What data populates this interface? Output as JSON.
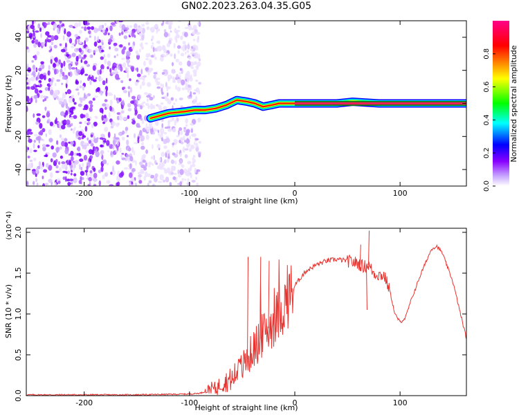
{
  "title": "GN02.2023.263.04.35.G05",
  "chart_data": [
    {
      "type": "heatmap",
      "title": "GN02.2023.263.04.35.G05",
      "xlabel": "Height of straight line (km)",
      "ylabel": "Frequency (Hz)",
      "xlim": [
        -255,
        163
      ],
      "ylim": [
        -50,
        50
      ],
      "xticks": [
        -200,
        -100,
        0,
        100
      ],
      "yticks": [
        -40,
        -20,
        0,
        20,
        40
      ],
      "colorbar": {
        "label": "Normalized spectral amplitude",
        "range": [
          0,
          1
        ],
        "ticks": [
          "0.0",
          "0.2",
          "0.4",
          "0.6",
          "0.8"
        ],
        "colors": [
          "#ffffff",
          "#8800ff",
          "#0000ff",
          "#00ffff",
          "#00ff00",
          "#ffff00",
          "#ff0000",
          "#ff0088"
        ]
      },
      "noise_region": {
        "x_range": [
          -255,
          -100
        ],
        "description": "scattered low-amplitude speckle across all frequencies"
      },
      "signal_track": {
        "x": [
          -137,
          -120,
          -105,
          -95,
          -85,
          -75,
          -65,
          -55,
          -45,
          -38,
          -30,
          -22,
          -15,
          -5,
          0,
          40,
          55,
          80,
          163
        ],
        "frequency": [
          -9,
          -6,
          -5,
          -4,
          -4,
          -3,
          -1,
          2,
          1,
          0,
          -2,
          -1,
          0,
          0,
          0,
          0,
          1,
          0,
          0
        ]
      }
    },
    {
      "type": "line",
      "xlabel": "Height of straight line (km)",
      "ylabel": "SNR (10 * v/v)",
      "y_multiplier": "(x10^4)",
      "xlim": [
        -255,
        163
      ],
      "ylim": [
        0,
        2.05
      ],
      "xticks": [
        -200,
        -100,
        0,
        100
      ],
      "yticks": [
        "0.0",
        "0.5",
        "1.0",
        "1.5",
        "2.0"
      ],
      "color": "#e8322e",
      "series": [
        {
          "x": [
            -255,
            -200,
            -150,
            -100,
            -90,
            -85,
            -80,
            -75,
            -70,
            -60,
            -50,
            -40,
            -30,
            -20,
            -10,
            0,
            10,
            20,
            30,
            40,
            50,
            60,
            65,
            70,
            75,
            80,
            85,
            90,
            95,
            100,
            105,
            110,
            120,
            130,
            135,
            140,
            150,
            163
          ],
          "y": [
            0.01,
            0.01,
            0.01,
            0.02,
            0.03,
            0.05,
            0.1,
            0.08,
            0.15,
            0.2,
            0.35,
            0.55,
            0.75,
            0.9,
            1.1,
            1.35,
            1.52,
            1.6,
            1.65,
            1.67,
            1.65,
            1.62,
            1.58,
            1.6,
            1.5,
            1.48,
            1.47,
            1.3,
            1.0,
            0.9,
            0.95,
            1.15,
            1.5,
            1.8,
            1.83,
            1.75,
            1.4,
            0.7
          ]
        }
      ],
      "spikes": [
        {
          "x": -45,
          "y": 1.7
        },
        {
          "x": -33,
          "y": 1.7
        },
        {
          "x": -25,
          "y": 1.65
        },
        {
          "x": 70,
          "y": 2.02
        },
        {
          "x": 68,
          "y": 1.05
        },
        {
          "x": 62,
          "y": 1.85
        }
      ]
    }
  ]
}
